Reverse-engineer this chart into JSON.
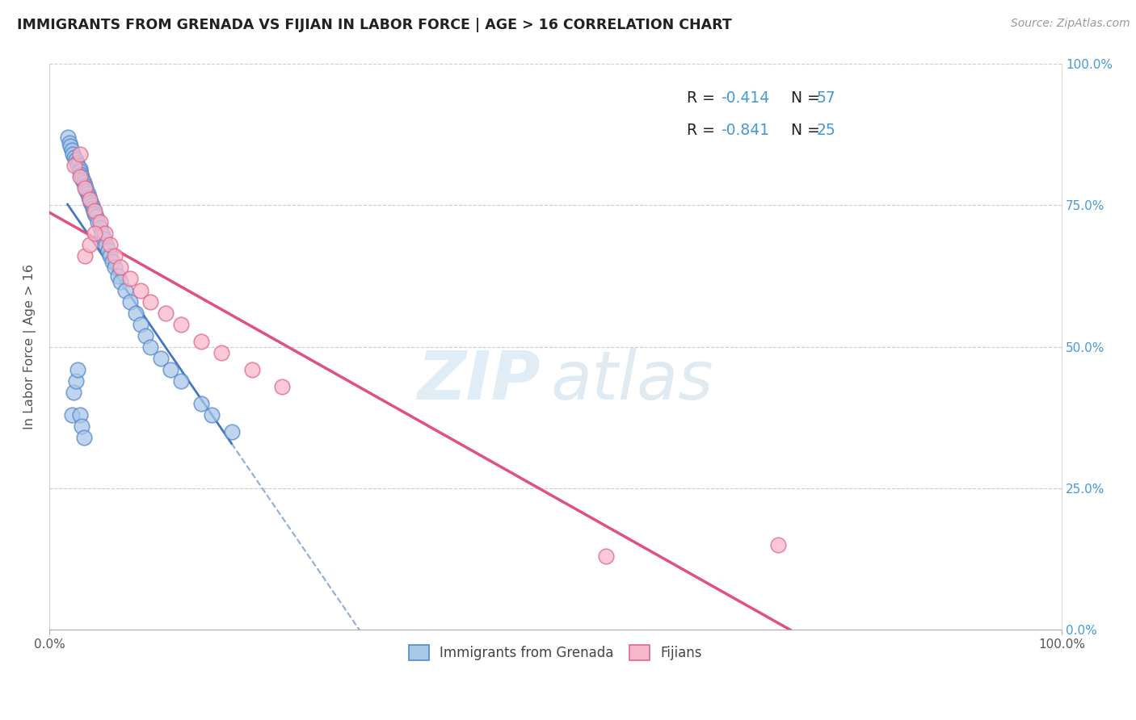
{
  "title": "IMMIGRANTS FROM GRENADA VS FIJIAN IN LABOR FORCE | AGE > 16 CORRELATION CHART",
  "source": "Source: ZipAtlas.com",
  "ylabel": "In Labor Force | Age > 16",
  "legend_label1": "Immigrants from Grenada",
  "legend_label2": "Fijians",
  "r1": "-0.414",
  "n1": "57",
  "r2": "-0.841",
  "n2": "25",
  "color1": "#a8c8e8",
  "color1_edge": "#5588cc",
  "color1_line": "#4477bb",
  "color2": "#f8b8cc",
  "color2_edge": "#e06888",
  "color2_line": "#e05080",
  "title_color": "#222222",
  "right_axis_color": "#4499dd",
  "grenada_x": [
    0.018,
    0.02,
    0.021,
    0.022,
    0.023,
    0.025,
    0.026,
    0.027,
    0.028,
    0.03,
    0.03,
    0.031,
    0.032,
    0.033,
    0.034,
    0.035,
    0.036,
    0.037,
    0.038,
    0.039,
    0.04,
    0.041,
    0.042,
    0.043,
    0.044,
    0.045,
    0.046,
    0.048,
    0.05,
    0.052,
    0.054,
    0.056,
    0.058,
    0.06,
    0.062,
    0.065,
    0.068,
    0.07,
    0.075,
    0.08,
    0.085,
    0.09,
    0.095,
    0.1,
    0.11,
    0.12,
    0.13,
    0.15,
    0.16,
    0.18,
    0.022,
    0.024,
    0.026,
    0.028,
    0.03,
    0.032,
    0.034
  ],
  "grenada_y": [
    0.87,
    0.86,
    0.855,
    0.848,
    0.84,
    0.835,
    0.83,
    0.825,
    0.82,
    0.815,
    0.81,
    0.805,
    0.8,
    0.795,
    0.79,
    0.785,
    0.78,
    0.775,
    0.77,
    0.765,
    0.76,
    0.755,
    0.75,
    0.745,
    0.74,
    0.735,
    0.73,
    0.72,
    0.71,
    0.7,
    0.69,
    0.68,
    0.67,
    0.66,
    0.65,
    0.64,
    0.625,
    0.615,
    0.6,
    0.58,
    0.56,
    0.54,
    0.52,
    0.5,
    0.48,
    0.46,
    0.44,
    0.4,
    0.38,
    0.35,
    0.38,
    0.42,
    0.44,
    0.46,
    0.38,
    0.36,
    0.34
  ],
  "fijian_x": [
    0.025,
    0.03,
    0.035,
    0.04,
    0.045,
    0.05,
    0.055,
    0.06,
    0.065,
    0.07,
    0.08,
    0.09,
    0.1,
    0.115,
    0.13,
    0.15,
    0.17,
    0.2,
    0.23,
    0.035,
    0.04,
    0.045,
    0.55,
    0.72,
    0.03
  ],
  "fijian_y": [
    0.82,
    0.8,
    0.78,
    0.76,
    0.74,
    0.72,
    0.7,
    0.68,
    0.66,
    0.64,
    0.62,
    0.6,
    0.58,
    0.56,
    0.54,
    0.51,
    0.49,
    0.46,
    0.43,
    0.66,
    0.68,
    0.7,
    0.13,
    0.15,
    0.84
  ],
  "xlim": [
    0.0,
    1.0
  ],
  "ylim": [
    0.0,
    1.0
  ]
}
